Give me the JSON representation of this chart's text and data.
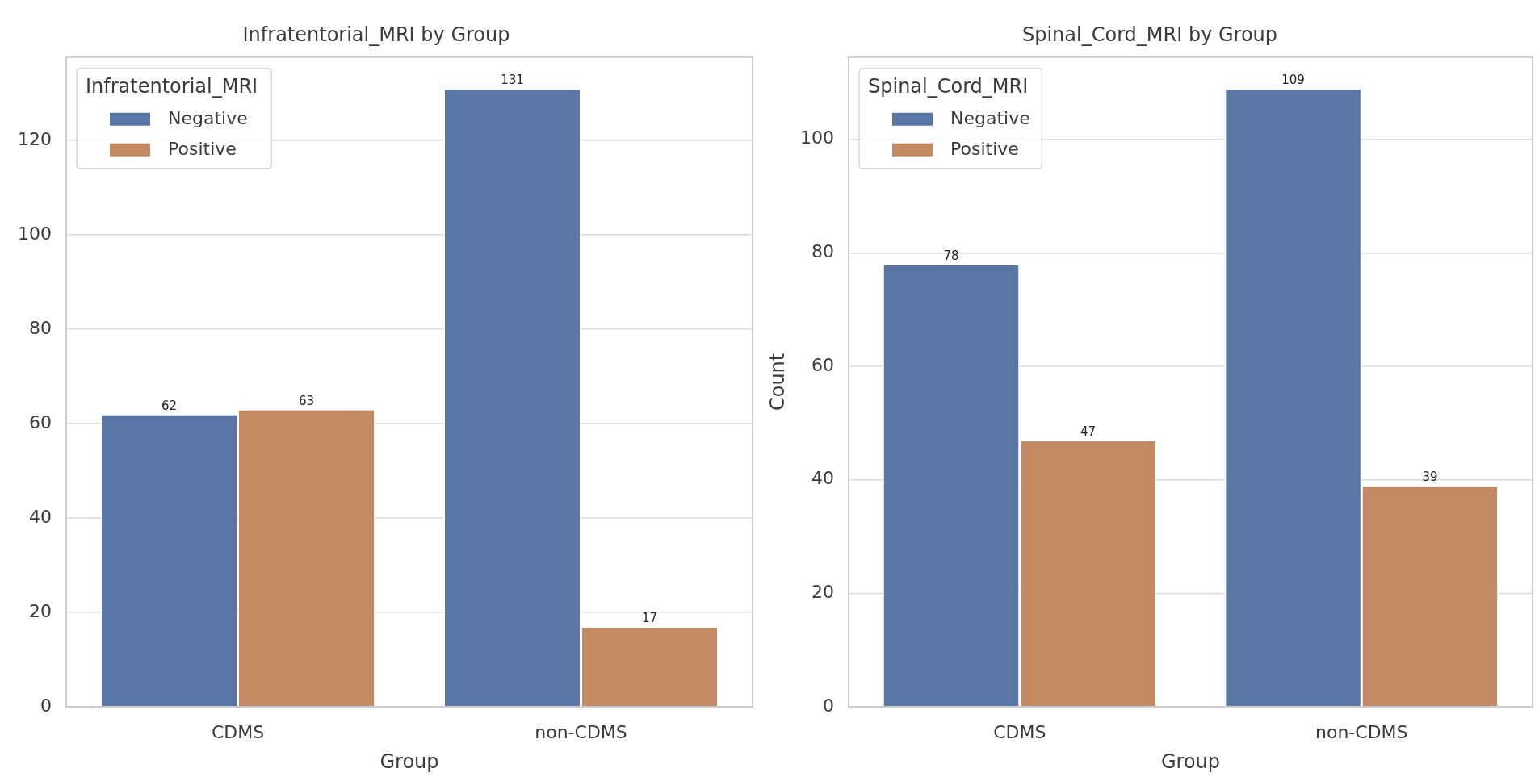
{
  "chart_data": [
    {
      "type": "bar",
      "title": "Infratentorial_MRI by Group",
      "xlabel": "Group",
      "legend_title": "Infratentorial_MRI",
      "categories": [
        "CDMS",
        "non-CDMS"
      ],
      "series": [
        {
          "name": "Negative",
          "color": "#5975a4",
          "values": [
            62,
            131
          ]
        },
        {
          "name": "Positive",
          "color": "#c38a64",
          "values": [
            63,
            17
          ]
        }
      ],
      "ylim": [
        0,
        137.6
      ],
      "yticks": [
        0,
        20,
        40,
        60,
        80,
        100,
        120
      ],
      "grid": "y",
      "legend": "top left",
      "data_labels": true
    },
    {
      "type": "bar",
      "title": "Spinal_Cord_MRI by Group",
      "xlabel": "Group",
      "ylabel": "Count",
      "legend_title": "Spinal_Cord_MRI",
      "categories": [
        "CDMS",
        "non-CDMS"
      ],
      "series": [
        {
          "name": "Negative",
          "color": "#5975a4",
          "values": [
            78,
            109
          ]
        },
        {
          "name": "Positive",
          "color": "#c38a64",
          "values": [
            47,
            39
          ]
        }
      ],
      "ylim": [
        0,
        114.5
      ],
      "yticks": [
        0,
        20,
        40,
        60,
        80,
        100
      ],
      "grid": "y",
      "legend": "top left",
      "data_labels": true
    }
  ]
}
